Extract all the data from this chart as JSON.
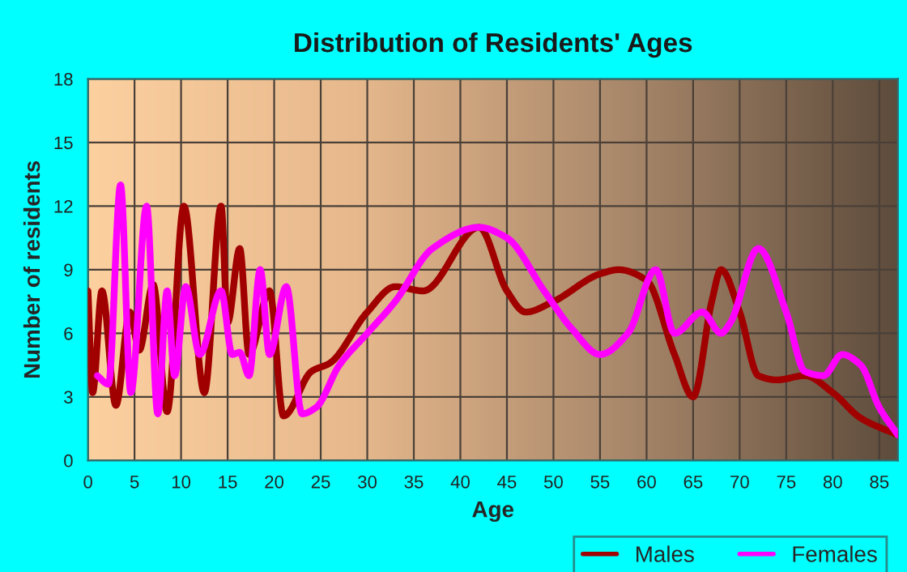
{
  "chart_data": {
    "type": "line",
    "title": "Distribution of Residents' Ages",
    "xlabel": "Age",
    "ylabel": "Number of residents",
    "xlim": [
      0,
      87
    ],
    "xticks": [
      0,
      5,
      10,
      15,
      20,
      25,
      30,
      35,
      40,
      45,
      50,
      55,
      60,
      65,
      70,
      75,
      80,
      85
    ],
    "ylim": [
      0,
      18
    ],
    "yticks": [
      0,
      3,
      6,
      9,
      12,
      15,
      18
    ],
    "grid": true,
    "legend": "bottom",
    "marker": "none",
    "line_style": "solid",
    "series": [
      {
        "name": "Males",
        "color": "#a00000",
        "x": [
          0,
          0.5,
          1.5,
          3,
          4.5,
          5.5,
          7,
          8.5,
          10.3,
          12.5,
          14.3,
          15,
          16.3,
          17.3,
          19.5,
          21,
          24,
          26,
          30,
          33,
          36,
          42,
          45,
          47,
          50,
          55,
          57,
          60,
          63,
          65,
          67,
          68,
          70,
          72,
          74,
          77,
          80,
          83,
          87
        ],
        "values": [
          8,
          3.2,
          8,
          2.6,
          7,
          5.2,
          8.3,
          2.3,
          12,
          3.2,
          12,
          6.5,
          10,
          5,
          8,
          2.1,
          4.2,
          4.6,
          7,
          8.2,
          8,
          11,
          8,
          7,
          7.5,
          8.8,
          9,
          8.5,
          5,
          3,
          7.5,
          9,
          7,
          4,
          3.8,
          4,
          3.2,
          2,
          1.2
        ]
      },
      {
        "name": "Females",
        "color": "#ff00ff",
        "x": [
          1,
          2.2,
          3.5,
          4.6,
          6.3,
          7.5,
          8.5,
          9.3,
          10.5,
          12,
          14.3,
          15.5,
          16.3,
          17.3,
          18.5,
          19.5,
          21.3,
          23,
          24.5,
          27,
          30,
          33,
          37,
          42,
          45,
          49,
          52,
          55,
          58,
          61,
          63,
          66,
          68,
          69,
          72,
          75,
          77,
          79,
          81,
          83,
          85,
          87
        ],
        "values": [
          4,
          3.6,
          13,
          3.2,
          12,
          2.2,
          8,
          4,
          8.2,
          5,
          8,
          5,
          5.1,
          4,
          9,
          5,
          8.2,
          2.2,
          2.5,
          4.5,
          6,
          7.5,
          10,
          11,
          10.5,
          8,
          6.2,
          5,
          6,
          9,
          6,
          7,
          6,
          6.5,
          10,
          7,
          4.2,
          4,
          5,
          4.5,
          2.5,
          1.2
        ]
      }
    ]
  }
}
